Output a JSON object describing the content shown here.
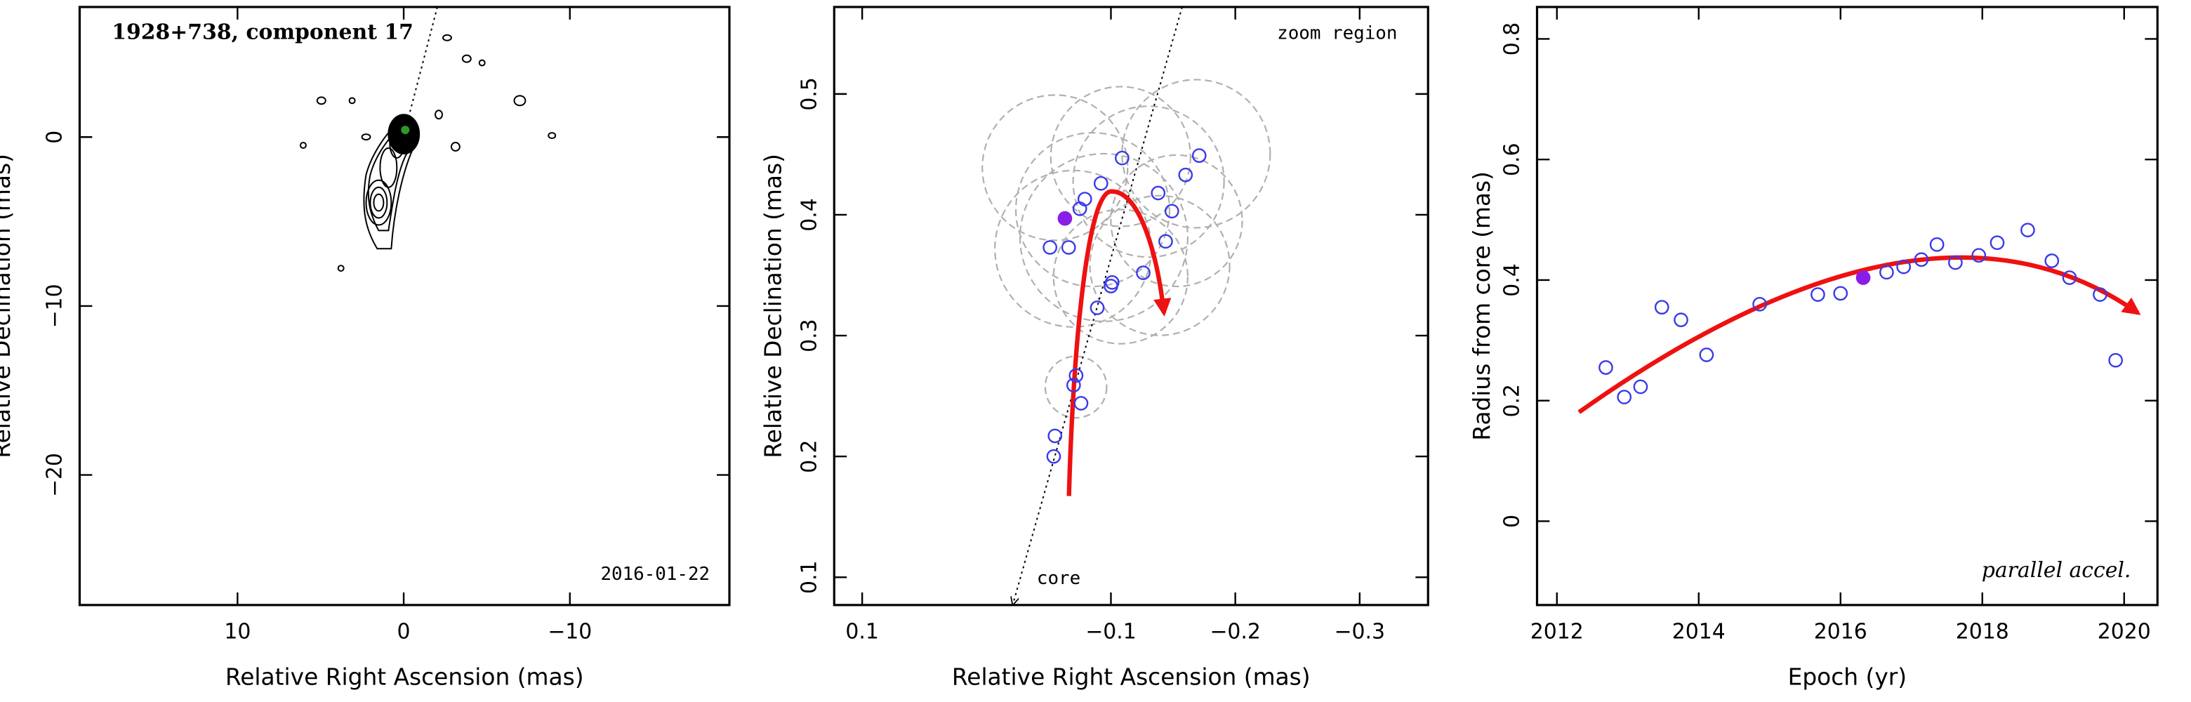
{
  "chart_data": [
    {
      "type": "contour",
      "title": "1928+738, component 17",
      "annotation": "2016-01-22",
      "x_label": "Relative Right Ascension (mas)",
      "y_label": "Relative Declination (mas)",
      "xlim": [
        19.5,
        -19.6
      ],
      "ylim": [
        -27.7,
        7.7
      ],
      "xticks": [
        10,
        0,
        {
          "value": -10,
          "label": "−10"
        }
      ],
      "yticks": [
        0,
        {
          "value": -10,
          "label": "−10"
        },
        {
          "value": -20,
          "label": "−20"
        }
      ]
    },
    {
      "type": "scatter",
      "annotation": "zoom region",
      "core_label": "core",
      "x_label": "Relative Right Ascension (mas)",
      "y_label": "Relative Declination (mas)",
      "xlim": [
        0.1225,
        -0.355
      ],
      "ylim": [
        0.077,
        0.572
      ],
      "xticks": [
        0.1,
        {
          "value": -0.1,
          "label": "−0.1"
        },
        {
          "value": -0.2,
          "label": "−0.2"
        },
        {
          "value": -0.3,
          "label": "−0.3"
        }
      ],
      "yticks": [
        0.1,
        0.2,
        0.3,
        0.4,
        0.5
      ],
      "series": [
        {
          "color": "#3a3ae8",
          "marker": "open",
          "x": [
            -0.054,
            -0.055,
            -0.07,
            -0.072,
            -0.076,
            -0.089,
            -0.1,
            -0.101,
            -0.051,
            -0.066,
            -0.075,
            -0.079,
            -0.092,
            -0.109,
            -0.126,
            -0.138,
            -0.144,
            -0.149,
            -0.16,
            -0.171
          ],
          "values": [
            0.2,
            0.217,
            0.259,
            0.267,
            0.244,
            0.323,
            0.341,
            0.344,
            0.373,
            0.373,
            0.405,
            0.413,
            0.426,
            0.447,
            0.352,
            0.418,
            0.378,
            0.403,
            0.433,
            0.449
          ]
        },
        {
          "color": "#8a1ee6",
          "marker": "filled",
          "x": [
            -0.063
          ],
          "values": [
            0.397
          ]
        }
      ]
    },
    {
      "type": "scatter",
      "annotation": "parallel accel.",
      "x_label": "Epoch (yr)",
      "y_label": "Radius from core (mas)",
      "xlim": [
        2011.72,
        2020.47
      ],
      "ylim": [
        -0.139,
        0.853
      ],
      "xticks": [
        2012,
        2014,
        2016,
        2018,
        2020
      ],
      "yticks": [
        0,
        0.2,
        0.4,
        0.6,
        0.8
      ],
      "series": [
        {
          "color": "#3a3ae8",
          "marker": "open",
          "x": [
            2012.69,
            2012.95,
            2013.18,
            2013.48,
            2013.75,
            2014.11,
            2014.86,
            2015.68,
            2016.0,
            2016.65,
            2016.89,
            2017.14,
            2017.36,
            2017.62,
            2017.95,
            2018.21,
            2018.64,
            2018.98,
            2019.23,
            2019.66,
            2019.88
          ],
          "values": [
            0.255,
            0.206,
            0.223,
            0.355,
            0.334,
            0.276,
            0.36,
            0.376,
            0.378,
            0.413,
            0.422,
            0.434,
            0.459,
            0.429,
            0.441,
            0.462,
            0.483,
            0.432,
            0.404,
            0.376,
            0.267
          ]
        },
        {
          "color": "#8a1ee6",
          "marker": "filled",
          "x": [
            2016.32
          ],
          "values": [
            0.404
          ]
        }
      ]
    }
  ]
}
